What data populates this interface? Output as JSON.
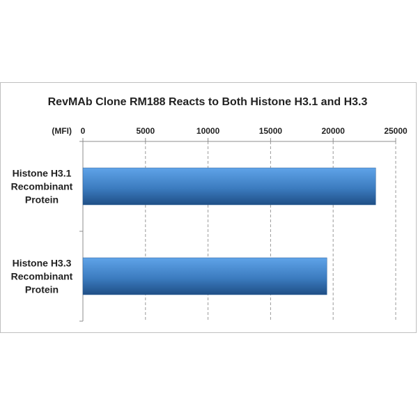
{
  "chart_data": {
    "type": "bar",
    "orientation": "horizontal",
    "title": "RevMAb Clone RM188 Reacts to Both Histone H3.1 and H3.3",
    "unit_label": "(MFI)",
    "categories": [
      [
        "Histone H3.1",
        "Recombinant",
        "Protein"
      ],
      [
        "Histone H3.3",
        "Recombinant",
        "Protein"
      ]
    ],
    "values": [
      23400,
      19500
    ],
    "xlim": [
      0,
      25000
    ],
    "xticks": [
      0,
      5000,
      10000,
      15000,
      20000,
      25000
    ],
    "x_axis_position": "top",
    "grid": "vertical-dashed",
    "bar_color": "#3f80c3",
    "legend": "none"
  }
}
